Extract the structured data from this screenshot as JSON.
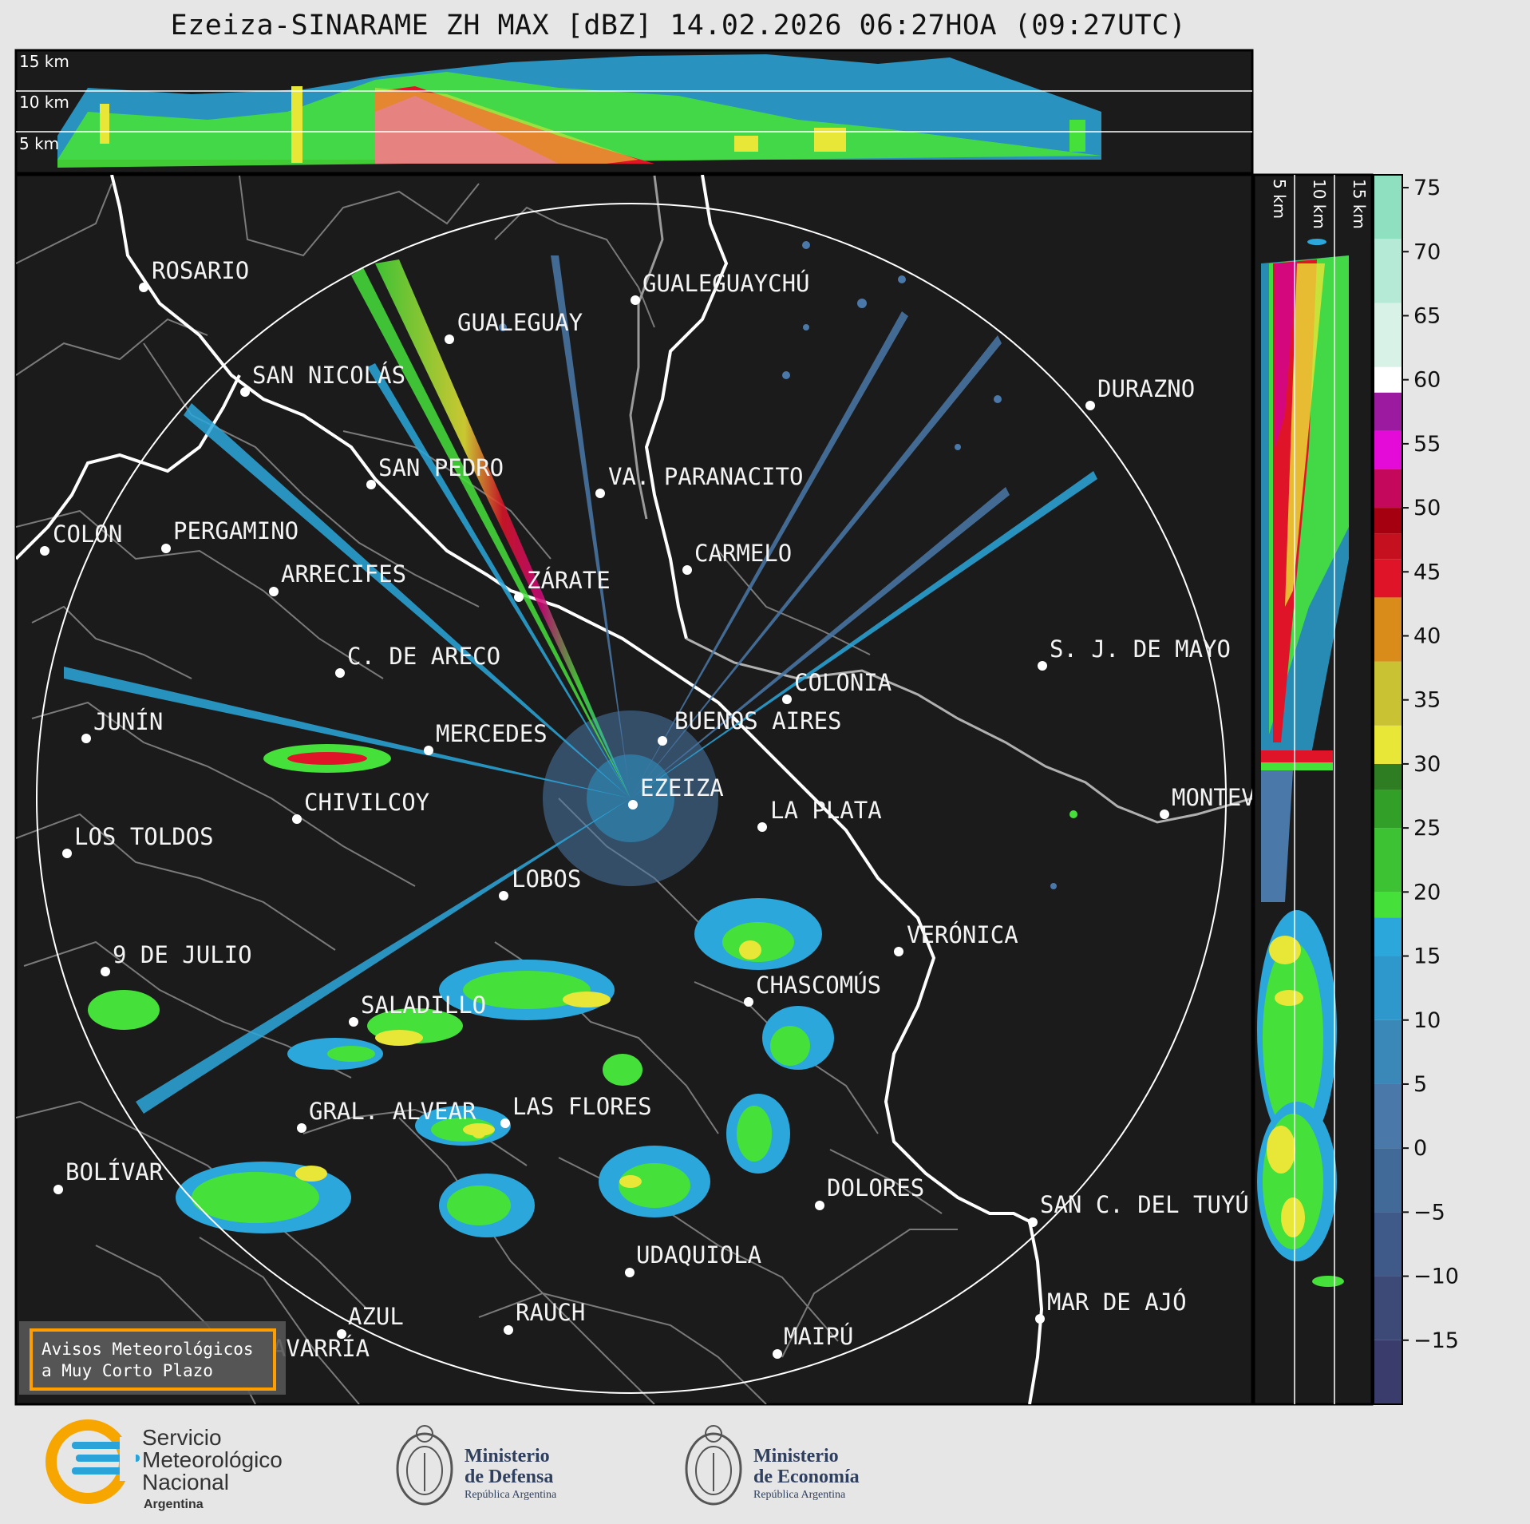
{
  "title": "Ezeiza-SINARAME ZH MAX [dBZ] 14.02.2026 06:27HOA (09:27UTC)",
  "top_panel": {
    "altitude_labels": [
      "15 km",
      "10 km",
      "5 km"
    ]
  },
  "right_panel": {
    "altitude_labels": [
      "5 km",
      "10 km",
      "15 km"
    ]
  },
  "places": [
    {
      "name": "ROSARIO"
    },
    {
      "name": "GUALEGUAYCHÚ"
    },
    {
      "name": "GUALEGUAY"
    },
    {
      "name": "SAN NICOLÁS"
    },
    {
      "name": "DURAZNO"
    },
    {
      "name": "SAN PEDRO"
    },
    {
      "name": "VA. PARANACITO"
    },
    {
      "name": "COLON"
    },
    {
      "name": "PERGAMINO"
    },
    {
      "name": "CARMELO"
    },
    {
      "name": "ARRECIFES"
    },
    {
      "name": "ZÁRATE"
    },
    {
      "name": "S. J. DE MAYO"
    },
    {
      "name": "C. DE ARECO"
    },
    {
      "name": "COLONIA"
    },
    {
      "name": "BUENOS AIRES"
    },
    {
      "name": "JUNÍN"
    },
    {
      "name": "MERCEDES"
    },
    {
      "name": "EZEIZA"
    },
    {
      "name": "MONTEVIDEO"
    },
    {
      "name": "CHIVILCOY"
    },
    {
      "name": "LA PLATA"
    },
    {
      "name": "LOS TOLDOS"
    },
    {
      "name": "LOBOS"
    },
    {
      "name": "VERÓNICA"
    },
    {
      "name": "9 DE JULIO"
    },
    {
      "name": "CHASCOMÚS"
    },
    {
      "name": "SALADILLO"
    },
    {
      "name": "LAS FLORES"
    },
    {
      "name": "GRAL. ALVEAR"
    },
    {
      "name": "BOLÍVAR"
    },
    {
      "name": "DOLORES"
    },
    {
      "name": "SAN C. DEL TUYÚ"
    },
    {
      "name": "UDAQUIOLA"
    },
    {
      "name": "MAR DE AJÓ"
    },
    {
      "name": "RAUCH"
    },
    {
      "name": "AZUL"
    },
    {
      "name": "OLAVARRÍA"
    },
    {
      "name": "MAIPÚ"
    }
  ],
  "colorbar": {
    "unit": "dBZ",
    "ticks": [
      "75",
      "70",
      "65",
      "60",
      "55",
      "50",
      "45",
      "40",
      "35",
      "30",
      "25",
      "20",
      "15",
      "10",
      "5",
      "0",
      "−5",
      "−10",
      "−15"
    ],
    "range": [
      -20,
      76
    ],
    "colors": {
      "low": "#3a3d6b",
      "mid_low": "#4a78a8",
      "blue": "#2ba7db",
      "green": "#2e7d22",
      "green_light": "#46e03a",
      "yellow": "#e8e636",
      "orange": "#d98c1a",
      "red": "#e01428",
      "darkred": "#a50010",
      "magenta": "#e40ad8",
      "purple": "#9c1aa0",
      "white": "#ffffff",
      "teal": "#8fe0c0"
    }
  },
  "notice": {
    "line1": "Avisos Meteorológicos",
    "line2": "a Muy Corto Plazo"
  },
  "footer": {
    "smn": {
      "line1": "Servicio",
      "line2": "Meteorológico",
      "line3": "Nacional",
      "line4": "Argentina"
    },
    "defensa": {
      "line1": "Ministerio",
      "line2": "de Defensa",
      "line3": "República Argentina"
    },
    "economia": {
      "line1": "Ministerio",
      "line2": "de Economía",
      "line3": "República Argentina"
    }
  }
}
